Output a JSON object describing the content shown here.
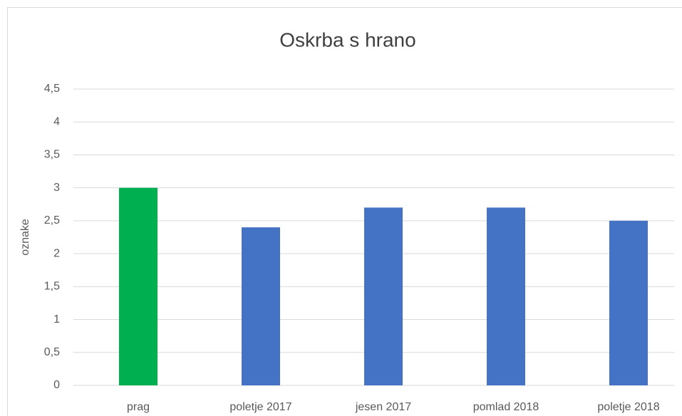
{
  "chart_data": {
    "type": "bar",
    "title": "Oskrba s hrano",
    "y_label": "oznake",
    "categories": [
      "prag",
      "poletje 2017",
      "jesen  2017",
      "pomlad 2018",
      "poletje 2018"
    ],
    "values": [
      3,
      2.4,
      2.7,
      2.7,
      2.5
    ],
    "colors": [
      "#00b050",
      "#4472c4",
      "#4472c4",
      "#4472c4",
      "#4472c4"
    ],
    "ylim": [
      0,
      4.5
    ],
    "yticks": [
      0,
      {
        "value": 0.5,
        "label": "0,5"
      },
      1,
      {
        "value": 1.5,
        "label": "1,5"
      },
      2,
      {
        "value": 2.5,
        "label": "2,5"
      },
      3,
      {
        "value": 3.5,
        "label": "3,5"
      },
      4,
      {
        "value": 4.5,
        "label": "4,5"
      }
    ],
    "grid": true
  }
}
